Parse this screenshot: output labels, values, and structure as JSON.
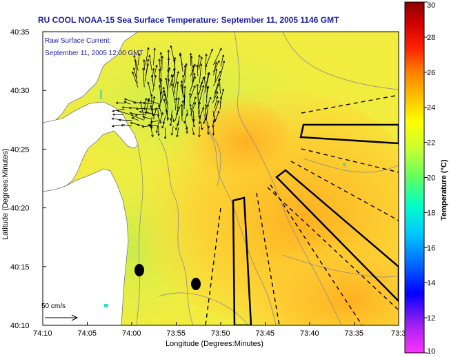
{
  "header": {
    "title": "RU COOL  NOAA-15  Sea Surface Temperature:  September 11, 2005 1146 GMT"
  },
  "legend": {
    "line1": "Raw Surface Current:",
    "line2": "September 11, 2005 12:00 GMT"
  },
  "scale_bar": {
    "label": "50 cm/s"
  },
  "axes": {
    "x_label": "Longitude (Degrees:Minutes)",
    "y_label": "Latitude (Degrees:Minutes)",
    "x_ticks": [
      "74:10",
      "74:05",
      "74:00",
      "73:55",
      "73:50",
      "73:45",
      "73:40",
      "73:35",
      "73:3"
    ],
    "y_ticks": [
      "40:35",
      "40:30",
      "40:25",
      "40:20",
      "40:15",
      "40:10"
    ]
  },
  "colorbar": {
    "label": "Temperature (°C)",
    "ticks": [
      "30",
      "28",
      "26",
      "24",
      "22",
      "20",
      "18",
      "16",
      "14",
      "12",
      "10"
    ],
    "colors": [
      "#ff33ff",
      "#a020f0",
      "#0000ff",
      "#0070ff",
      "#00c8ff",
      "#00ffc8",
      "#60ff60",
      "#c8ff32",
      "#ffff00",
      "#ffc800",
      "#ff8000",
      "#ff2000",
      "#d00000",
      "#8b0000"
    ]
  },
  "map_colors": {
    "land": "#ffffff",
    "sea_warm": "#ffc02a",
    "sea_mid": "#ffe23a",
    "sea_cool": "#d8f050",
    "contour": "#999999",
    "current_vectors": "#000000",
    "patch_cyan": "#00e0c0"
  }
}
